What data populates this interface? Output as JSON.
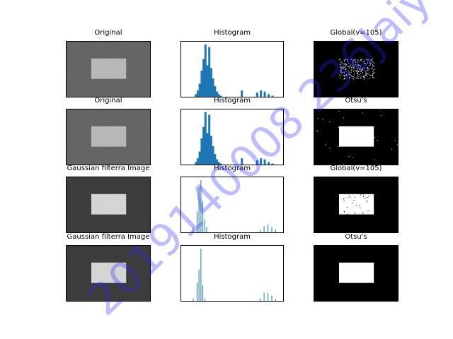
{
  "chart_data": [
    {
      "row": 1,
      "panels": [
        {
          "type": "image",
          "title": "Original",
          "content": "gray noisy background with lighter gray rectangle",
          "background_gray": 88,
          "rect_gray": 190
        },
        {
          "type": "bar",
          "title": "Histogram",
          "note": "pixel intensity histogram",
          "x": [
            0,
            10,
            20,
            30,
            35,
            40,
            45,
            50,
            55,
            60,
            65,
            70,
            75,
            80,
            85,
            90,
            95,
            100,
            110,
            120,
            130,
            140,
            150,
            160,
            170,
            180,
            190,
            200,
            210,
            220,
            230,
            240,
            250,
            255
          ],
          "y": [
            0,
            0,
            0,
            0.05,
            0.12,
            0.25,
            0.5,
            0.72,
            1.0,
            0.6,
            0.95,
            0.55,
            0.35,
            0.2,
            0.1,
            0.05,
            0.02,
            0,
            0,
            0,
            0,
            0,
            0.12,
            0,
            0,
            0,
            0.08,
            0.12,
            0.1,
            0.05,
            0.02,
            0,
            0,
            0
          ],
          "spike": {
            "x": 55,
            "peak": 1.0
          }
        },
        {
          "type": "image",
          "title": "Global(v=105)",
          "content": "mostly black with sparse white noise in rectangle region",
          "threshold": 105
        }
      ]
    },
    {
      "row": 2,
      "panels": [
        {
          "type": "image",
          "title": "Original",
          "content": "gray noisy background with lighter gray rectangle",
          "background_gray": 88,
          "rect_gray": 190
        },
        {
          "type": "bar",
          "title": "Histogram",
          "note": "pixel intensity histogram"
        },
        {
          "type": "image",
          "title": "Otsu's",
          "content": "black background with white rectangle and sparse white noise"
        }
      ]
    },
    {
      "row": 3,
      "panels": [
        {
          "type": "image",
          "title": "Gaussian filterra Image",
          "content": "dark smoothed background with bright rectangle",
          "background_gray": 45,
          "rect_gray": 220
        },
        {
          "type": "bar",
          "title": "Histogram",
          "note": "sparse spike histogram",
          "spikes": [
            [
              25,
              0.1
            ],
            [
              35,
              0.4
            ],
            [
              40,
              0.85
            ],
            [
              45,
              1.0
            ],
            [
              50,
              0.6
            ],
            [
              55,
              0.25
            ],
            [
              60,
              0.1
            ],
            [
              200,
              0.05
            ],
            [
              210,
              0.12
            ],
            [
              220,
              0.15
            ],
            [
              230,
              0.1
            ],
            [
              240,
              0.05
            ]
          ]
        },
        {
          "type": "image",
          "title": "Global(v=105)",
          "content": "black background with white rectangle containing black specks",
          "threshold": 105
        }
      ]
    },
    {
      "row": 4,
      "panels": [
        {
          "type": "image",
          "title": "Gaussian filterra Image",
          "content": "dark smoothed background with bright rectangle",
          "background_gray": 45,
          "rect_gray": 220
        },
        {
          "type": "bar",
          "title": "Histogram",
          "note": "sparse spike histogram",
          "spikes": [
            [
              25,
              0.05
            ],
            [
              35,
              0.35
            ],
            [
              40,
              0.6
            ],
            [
              45,
              1.0
            ],
            [
              50,
              0.3
            ],
            [
              55,
              0.05
            ],
            [
              200,
              0.05
            ],
            [
              210,
              0.15
            ],
            [
              220,
              0.15
            ],
            [
              230,
              0.1
            ],
            [
              240,
              0.03
            ]
          ]
        },
        {
          "type": "image",
          "title": "Otsu's",
          "content": "black background with clean white rectangle"
        }
      ]
    }
  ],
  "watermark": {
    "text": "2019140008 236Jaiyun",
    "color": "#2828ff"
  },
  "colors": {
    "bar": "#1f77b4",
    "frame": "#000000",
    "text": "#000000"
  }
}
